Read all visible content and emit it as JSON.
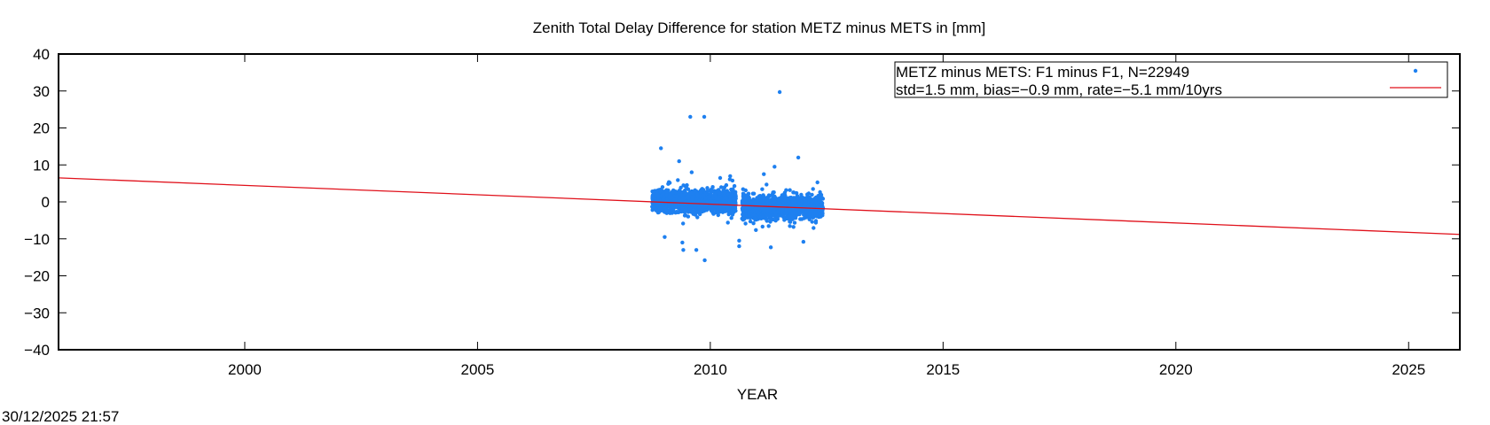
{
  "chart_data": {
    "type": "scatter",
    "title": "Zenith Total Delay Difference for station METZ minus METS in [mm]",
    "xlabel": "YEAR",
    "ylabel": "",
    "xlim": [
      1996.0,
      2026.1
    ],
    "ylim": [
      -40,
      40
    ],
    "xticks": [
      2000,
      2005,
      2010,
      2015,
      2020,
      2025
    ],
    "yticks": [
      -40,
      -30,
      -20,
      -10,
      0,
      10,
      20,
      30,
      40
    ],
    "grid": false,
    "legend_position": "top-right",
    "series": [
      {
        "name": "METZ minus METS: F1 minus F1, N=22949",
        "kind": "points",
        "color": "#1e80f0",
        "count": 22949,
        "segments": [
          {
            "x_range": [
              2008.75,
              2010.55
            ],
            "center": 0.2,
            "spread": 1.5
          },
          {
            "x_range": [
              2010.68,
              2012.42
            ],
            "center": -1.5,
            "spread": 1.5
          }
        ],
        "outliers": [
          {
            "x": 2009.57,
            "y": 23.0
          },
          {
            "x": 2009.87,
            "y": 23.0
          },
          {
            "x": 2011.49,
            "y": 29.7
          },
          {
            "x": 2008.94,
            "y": 14.5
          },
          {
            "x": 2011.89,
            "y": 12.0
          },
          {
            "x": 2009.33,
            "y": 11.0
          },
          {
            "x": 2011.38,
            "y": 9.5
          },
          {
            "x": 2009.02,
            "y": -9.5
          },
          {
            "x": 2009.4,
            "y": -11.0
          },
          {
            "x": 2009.42,
            "y": -13.0
          },
          {
            "x": 2009.7,
            "y": -13.0
          },
          {
            "x": 2009.88,
            "y": -15.8
          },
          {
            "x": 2010.62,
            "y": -12.0
          },
          {
            "x": 2010.62,
            "y": -10.5
          },
          {
            "x": 2011.3,
            "y": -12.3
          },
          {
            "x": 2012.0,
            "y": -10.8
          },
          {
            "x": 2009.6,
            "y": 8.0
          },
          {
            "x": 2011.15,
            "y": 7.5
          }
        ]
      },
      {
        "name": "std=1.5 mm, bias=−0.9 mm, rate=−5.1 mm/10yrs",
        "kind": "line",
        "color": "#e0101a",
        "x": [
          1996.0,
          2026.1
        ],
        "y": [
          6.5,
          -8.8
        ]
      }
    ]
  },
  "footer": {
    "timestamp": "30/12/2025 21:57"
  }
}
